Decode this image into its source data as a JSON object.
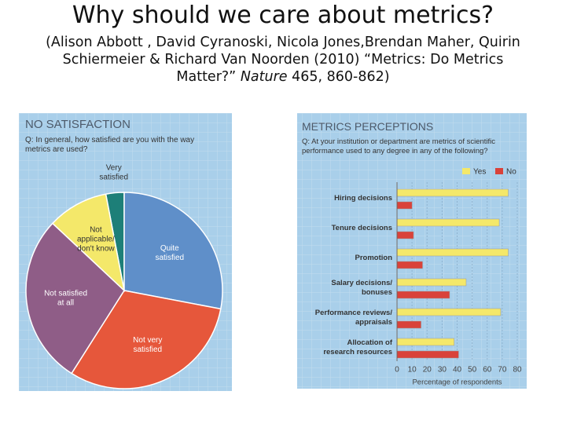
{
  "header": {
    "title": "Why should we care about metrics?",
    "citation_before": "(Alison Abbott , David Cyranoski, Nicola Jones,Brendan Maher, Quirin Schiermeier & Richard Van Noorden (2010) “Metrics: Do Metrics Matter?” ",
    "citation_journal": "Nature",
    "citation_after": " 465, 860-862)"
  },
  "chart_data": [
    {
      "type": "pie",
      "title": "NO SATISFACTION",
      "question": "Q: In general, how satisfied are you with the way metrics are used?",
      "categories": [
        "Very satisfied",
        "Quite satisfied",
        "Not very satisfied",
        "Not satisfied at all",
        "Not applicable/ don't know"
      ],
      "values": [
        3,
        28,
        31,
        28,
        10
      ],
      "colors": [
        "#1d7f78",
        "#5f8fc9",
        "#e6573b",
        "#8f5d87",
        "#f4e86a"
      ]
    },
    {
      "type": "hbar",
      "title": "METRICS PERCEPTIONS",
      "question": "Q: At your institution or department are metrics of scientific performance used to any degree in any of the following?",
      "categories": [
        "Hiring decisions",
        "Tenure decisions",
        "Promotion",
        "Salary decisions/ bonuses",
        "Performance reviews/ appraisals",
        "Allocation of research resources"
      ],
      "series": [
        {
          "name": "Yes",
          "color": "#f4e86a",
          "values": [
            74,
            68,
            74,
            46,
            69,
            38
          ]
        },
        {
          "name": "No",
          "color": "#d9423a",
          "values": [
            10,
            11,
            17,
            35,
            16,
            41
          ]
        }
      ],
      "xlim": [
        0,
        80
      ],
      "xticks": [
        0,
        10,
        20,
        30,
        40,
        50,
        60,
        70,
        80
      ],
      "xlabel": "Percentage of respondents",
      "grid": true
    }
  ]
}
